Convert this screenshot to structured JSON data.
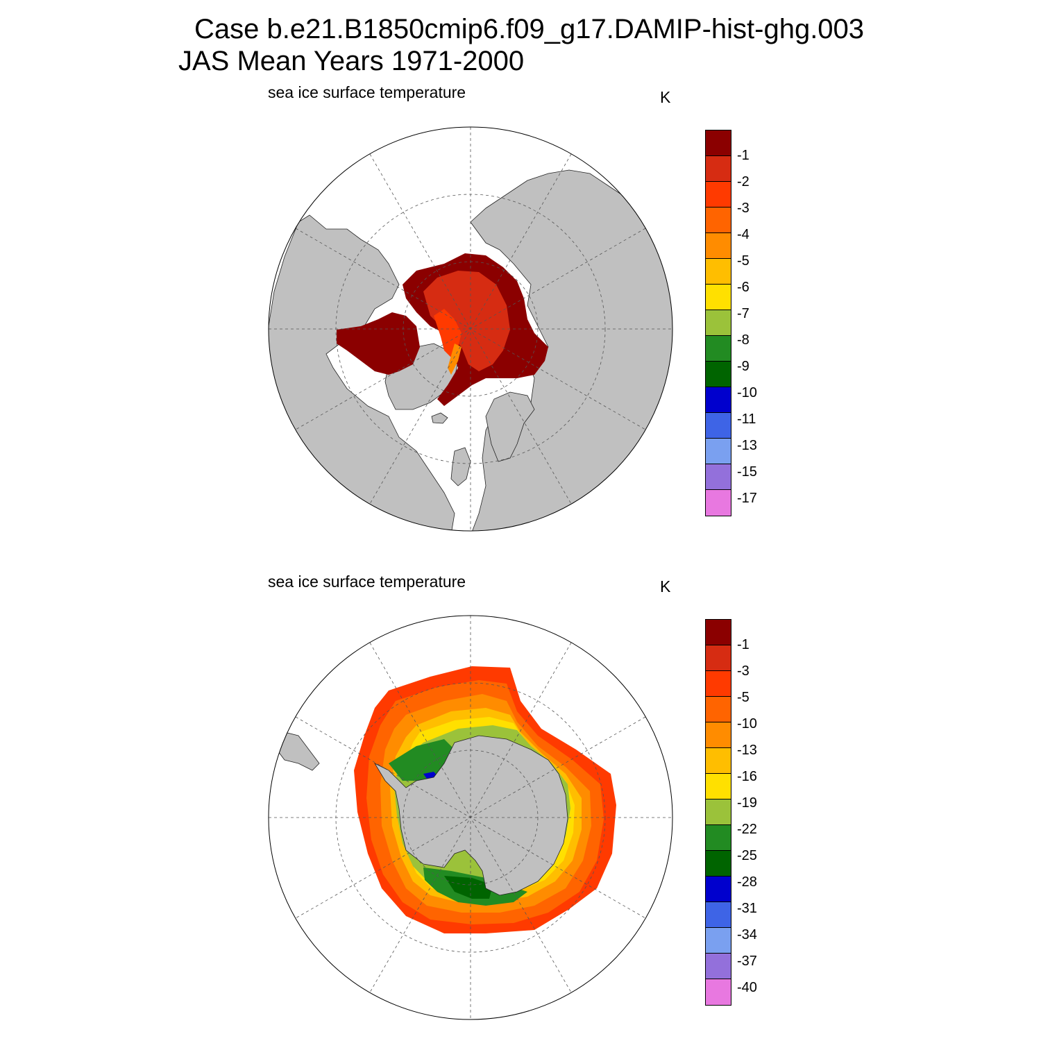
{
  "figure": {
    "title_line1": "Case b.e21.B1850cmip6.f09_g17.DAMIP-hist-ghg.003",
    "title_line2": "JAS Mean   Years 1971-2000"
  },
  "panels": [
    {
      "hemisphere": "north",
      "label": "sea ice surface temperature",
      "units": "K",
      "colorbar": {
        "colors": [
          "#8b0000",
          "#d62c12",
          "#ff3a00",
          "#ff6400",
          "#ff8c00",
          "#ffbe00",
          "#ffe000",
          "#9bc23a",
          "#228b22",
          "#006400",
          "#0000cd",
          "#3e64e6",
          "#7aa0f0",
          "#9370db",
          "#e878e0"
        ],
        "ticks": [
          "-1",
          "-2",
          "-3",
          "-4",
          "-5",
          "-6",
          "-7",
          "-8",
          "-9",
          "-10",
          "-11",
          "-13",
          "-15",
          "-17"
        ]
      }
    },
    {
      "hemisphere": "south",
      "label": "sea ice surface temperature",
      "units": "K",
      "colorbar": {
        "colors": [
          "#8b0000",
          "#d62c12",
          "#ff3a00",
          "#ff6400",
          "#ff8c00",
          "#ffbe00",
          "#ffe000",
          "#9bc23a",
          "#228b22",
          "#006400",
          "#0000cd",
          "#3e64e6",
          "#7aa0f0",
          "#9370db",
          "#e878e0"
        ],
        "ticks": [
          "-1",
          "-3",
          "-5",
          "-10",
          "-13",
          "-16",
          "-19",
          "-22",
          "-25",
          "-28",
          "-31",
          "-34",
          "-37",
          "-40"
        ]
      }
    }
  ],
  "colors": {
    "land": "#c0c0c0",
    "ocean": "#ffffff",
    "grid": "#555555"
  }
}
